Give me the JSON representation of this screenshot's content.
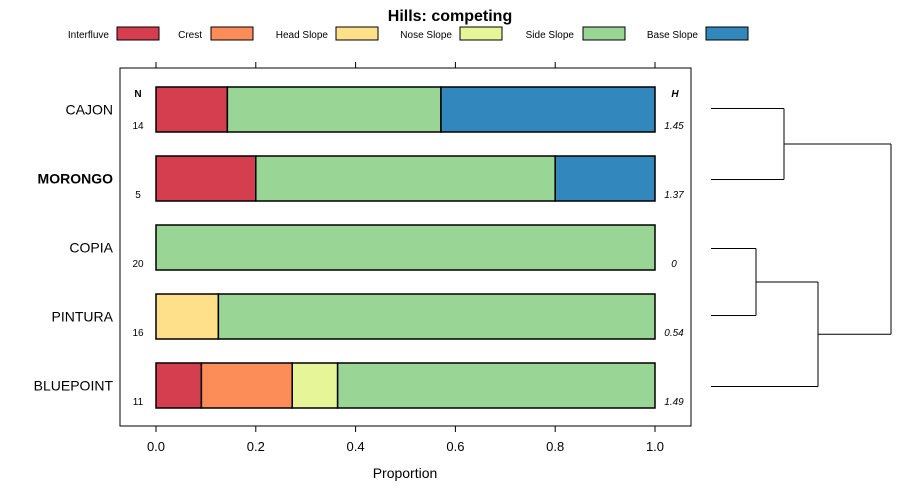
{
  "chart_data": {
    "type": "bar",
    "title": "Hills: competing",
    "xlabel": "Proportion",
    "ylabel": "",
    "xlim": [
      0,
      1
    ],
    "x_ticks": [
      "0.0",
      "0.2",
      "0.4",
      "0.6",
      "0.8",
      "1.0"
    ],
    "x_tick_values": [
      0,
      0.2,
      0.4,
      0.6,
      0.8,
      1.0
    ],
    "legend": [
      {
        "name": "Interfluve",
        "color": "#D53E4F"
      },
      {
        "name": "Crest",
        "color": "#FC8D59"
      },
      {
        "name": "Head Slope",
        "color": "#FEE08B"
      },
      {
        "name": "Nose Slope",
        "color": "#E6F598"
      },
      {
        "name": "Side Slope",
        "color": "#99D594"
      },
      {
        "name": "Base Slope",
        "color": "#3288BD"
      }
    ],
    "n_header": "N",
    "h_header": "H",
    "categories": [
      "CAJON",
      "MORONGO",
      "COPIA",
      "PINTURA",
      "BLUEPOINT"
    ],
    "highlight": "MORONGO",
    "n": [
      "14",
      "5",
      "20",
      "16",
      "11"
    ],
    "h": [
      "1.45",
      "1.37",
      "0",
      "0.54",
      "1.49"
    ],
    "series": [
      {
        "name": "Interfluve",
        "values": [
          0.143,
          0.2,
          0,
          0,
          0.091
        ]
      },
      {
        "name": "Crest",
        "values": [
          0,
          0,
          0,
          0,
          0.182
        ]
      },
      {
        "name": "Head Slope",
        "values": [
          0,
          0,
          0,
          0.125,
          0
        ]
      },
      {
        "name": "Nose Slope",
        "values": [
          0,
          0,
          0,
          0,
          0.091
        ]
      },
      {
        "name": "Side Slope",
        "values": [
          0.428,
          0.6,
          1.0,
          0.875,
          0.636
        ]
      },
      {
        "name": "Base Slope",
        "values": [
          0.429,
          0.2,
          0,
          0,
          0
        ]
      }
    ],
    "dendrogram": {
      "merges": [
        [
          "COPIA",
          "PINTURA"
        ],
        [
          "COPIA+PINTURA",
          "BLUEPOINT"
        ],
        [
          "CAJON",
          "MORONGO"
        ],
        [
          "CAJON+MORONGO",
          "COPIA+PINTURA+BLUEPOINT"
        ]
      ]
    }
  }
}
